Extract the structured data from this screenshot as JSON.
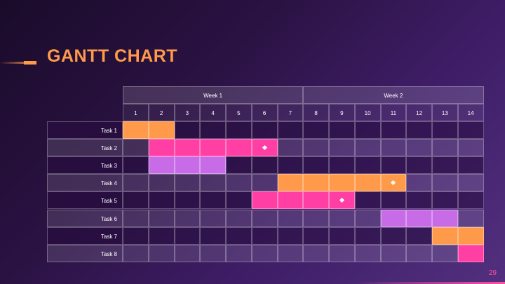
{
  "slide": {
    "title": "GANTT CHART",
    "page_number": "29"
  },
  "colors": {
    "orange": "#ff9a4a",
    "pink": "#ff3fa4",
    "purple": "#c76ce6",
    "milestone": "#ffffff"
  },
  "gantt": {
    "weeks": [
      {
        "label": "Week 1",
        "day_from": 1,
        "day_to": 7
      },
      {
        "label": "Week 2",
        "day_from": 8,
        "day_to": 14
      }
    ],
    "days": [
      "1",
      "2",
      "3",
      "4",
      "5",
      "6",
      "7",
      "8",
      "9",
      "10",
      "11",
      "12",
      "13",
      "14"
    ],
    "tasks": [
      {
        "label": "Task 1",
        "start": 1,
        "end": 2,
        "color": "orange",
        "milestone_day": null
      },
      {
        "label": "Task 2",
        "start": 2,
        "end": 6,
        "color": "pink",
        "milestone_day": 6
      },
      {
        "label": "Task 3",
        "start": 2,
        "end": 4,
        "color": "purple",
        "milestone_day": null
      },
      {
        "label": "Task 4",
        "start": 7,
        "end": 11,
        "color": "orange",
        "milestone_day": 11
      },
      {
        "label": "Task 5",
        "start": 6,
        "end": 9,
        "color": "pink",
        "milestone_day": 9
      },
      {
        "label": "Task 6",
        "start": 11,
        "end": 13,
        "color": "purple",
        "milestone_day": null
      },
      {
        "label": "Task 7",
        "start": 13,
        "end": 14,
        "color": "orange",
        "milestone_day": null
      },
      {
        "label": "Task 8",
        "start": 14,
        "end": 14,
        "color": "pink",
        "milestone_day": null
      }
    ]
  }
}
